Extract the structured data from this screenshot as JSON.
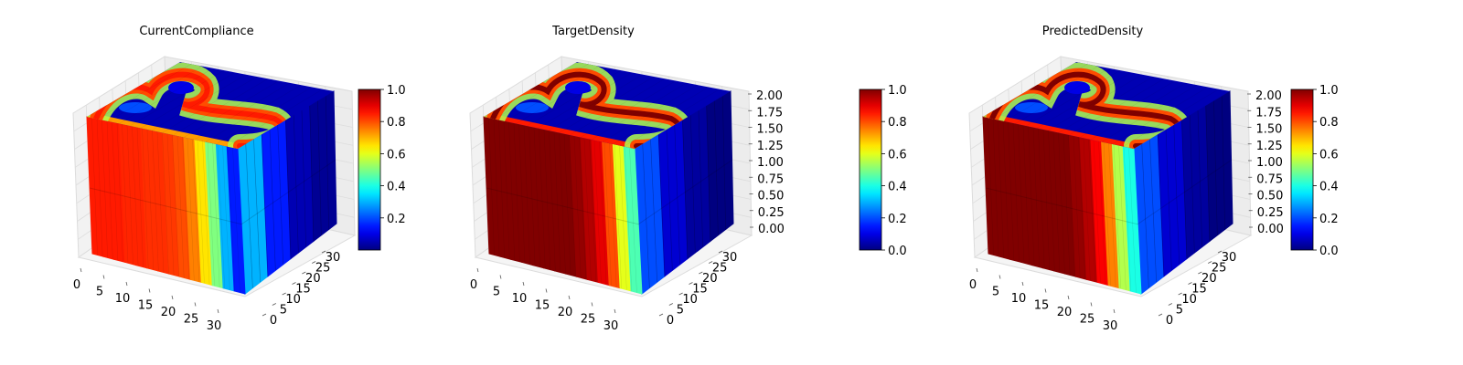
{
  "colormap": "jet",
  "chart_data": [
    {
      "type": "3d-voxel-density",
      "title": "CurrentCompliance",
      "x_ticks": [
        "0",
        "5",
        "10",
        "15",
        "20",
        "25",
        "30"
      ],
      "y_ticks": [
        "0",
        "5",
        "10",
        "15",
        "20",
        "25",
        "30"
      ],
      "z_ticks": [],
      "colorbar": {
        "min": 0.0,
        "max": 1.0,
        "ticks": [
          "0.2",
          "0.4",
          "0.6",
          "0.8",
          "1.0"
        ]
      },
      "front_face_band_values": [
        0.85,
        0.85,
        0.85,
        0.84,
        0.84,
        0.83,
        0.83,
        0.82,
        0.8,
        0.75,
        0.65,
        0.5,
        0.3,
        0.15
      ],
      "side_face_values": [
        0.3,
        0.15,
        0.05,
        0.02
      ]
    },
    {
      "type": "3d-voxel-density",
      "title": "TargetDensity",
      "x_ticks": [
        "0",
        "5",
        "10",
        "15",
        "20",
        "25",
        "30"
      ],
      "y_ticks": [
        "0",
        "5",
        "10",
        "15",
        "20",
        "25",
        "30"
      ],
      "z_ticks": [
        "0.00",
        "0.25",
        "0.50",
        "0.75",
        "1.00",
        "1.25",
        "1.50",
        "1.75",
        "2.00"
      ],
      "colorbar": {
        "min": 0.0,
        "max": 1.0,
        "ticks": [
          "0.0",
          "0.2",
          "0.4",
          "0.6",
          "0.8",
          "1.0"
        ]
      },
      "front_face_band_values": [
        1,
        1,
        1,
        1,
        1,
        1,
        1,
        1,
        0.98,
        0.95,
        0.9,
        0.8,
        0.6,
        0.45
      ],
      "side_face_values": [
        0.2,
        0.08,
        0.03,
        0.0
      ]
    },
    {
      "type": "3d-voxel-density",
      "title": "PredictedDensity",
      "x_ticks": [
        "0",
        "5",
        "10",
        "15",
        "20",
        "25",
        "30"
      ],
      "y_ticks": [
        "0",
        "5",
        "10",
        "15",
        "20",
        "25",
        "30"
      ],
      "z_ticks": [
        "0.00",
        "0.25",
        "0.50",
        "0.75",
        "1.00",
        "1.25",
        "1.50",
        "1.75",
        "2.00"
      ],
      "colorbar": {
        "min": 0.0,
        "max": 1.0,
        "ticks": [
          "0.0",
          "0.2",
          "0.4",
          "0.6",
          "0.8",
          "1.0"
        ]
      },
      "front_face_band_values": [
        1,
        1,
        1,
        1,
        1,
        1,
        1,
        1,
        0.98,
        0.95,
        0.88,
        0.75,
        0.55,
        0.4
      ],
      "side_face_values": [
        0.2,
        0.08,
        0.03,
        0.0
      ]
    }
  ]
}
